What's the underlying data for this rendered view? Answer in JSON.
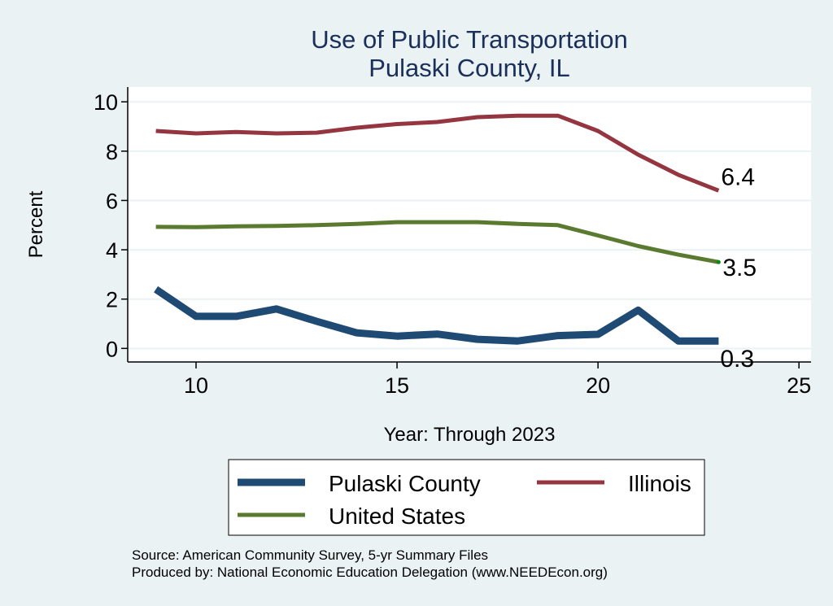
{
  "chart_data": {
    "type": "line",
    "title": "Use of Public Transportation",
    "subtitle": "Pulaski County, IL",
    "xlabel": "Year: Through 2023",
    "ylabel": "Percent",
    "xlim": [
      8.3,
      25.3
    ],
    "ylim": [
      -0.55,
      10.6
    ],
    "xticks": [
      10,
      15,
      20,
      25
    ],
    "yticks": [
      0,
      2,
      4,
      6,
      8,
      10
    ],
    "grid": true,
    "x": [
      9,
      10,
      11,
      12,
      13,
      14,
      15,
      16,
      17,
      18,
      19,
      20,
      21,
      22,
      23
    ],
    "series": [
      {
        "name": "Pulaski County",
        "color": "#1f4a73",
        "values": [
          2.4,
          1.3,
          1.3,
          1.6,
          1.1,
          0.63,
          0.5,
          0.58,
          0.37,
          0.3,
          0.52,
          0.57,
          1.55,
          0.3,
          0.3
        ],
        "end_label": "0.3"
      },
      {
        "name": "Illinois",
        "color": "#943540",
        "values": [
          8.82,
          8.72,
          8.78,
          8.72,
          8.75,
          8.95,
          9.1,
          9.18,
          9.38,
          9.44,
          9.44,
          8.82,
          7.86,
          7.04,
          6.4
        ],
        "end_label": "6.4"
      },
      {
        "name": "United States",
        "color": "#5a7a30",
        "values": [
          4.93,
          4.92,
          4.95,
          4.97,
          5.0,
          5.05,
          5.12,
          5.12,
          5.12,
          5.05,
          5.0,
          4.58,
          4.15,
          3.8,
          3.5
        ],
        "end_label": "3.5"
      }
    ],
    "legend": {
      "placement": "bottom",
      "entries": [
        "Pulaski County",
        "Illinois",
        "United States"
      ]
    },
    "notes": [
      "Source: American Community Survey, 5-yr Summary Files",
      "Produced by: National Economic Education Delegation (www.NEEDEcon.org)"
    ]
  }
}
